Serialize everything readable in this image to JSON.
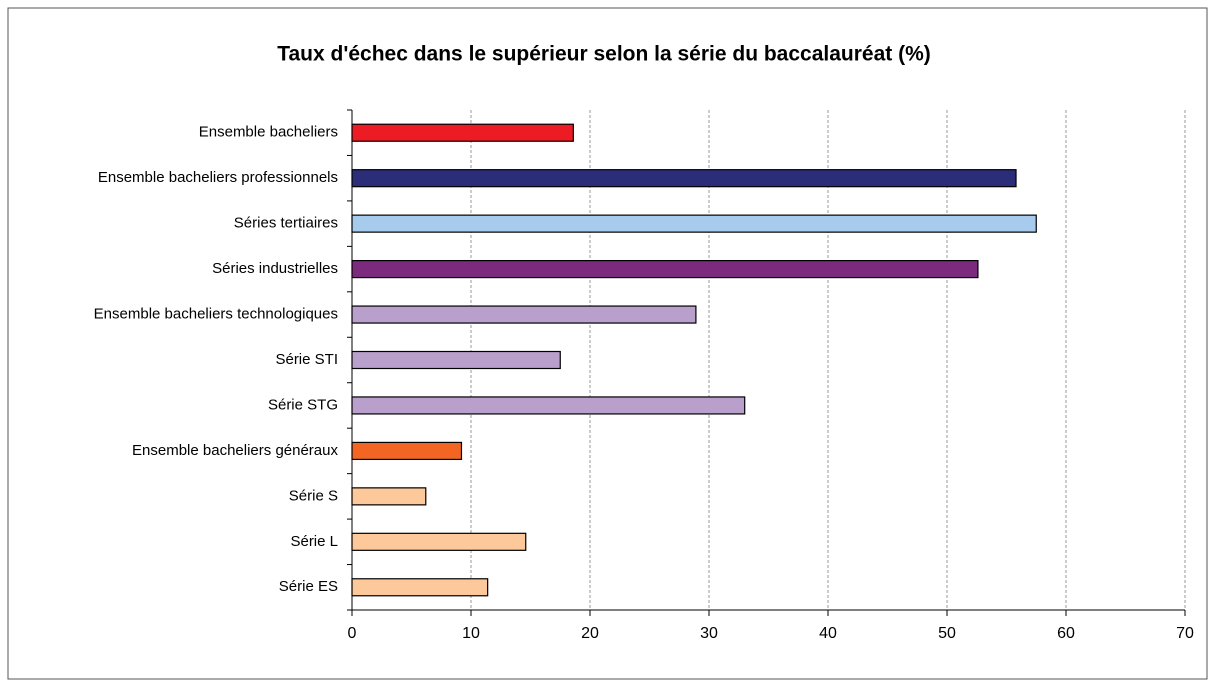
{
  "chart_data": {
    "type": "barh",
    "title": "Taux d'échec dans le supérieur selon la série du baccalauréat (%)",
    "categories": [
      "Ensemble bacheliers",
      "Ensemble bacheliers professionnels",
      "Séries tertiaires",
      "Séries industrielles",
      "Ensemble bacheliers technologiques",
      "Série STI",
      "Série STG",
      "Ensemble bacheliers généraux",
      "Série S",
      "Série L",
      "Série ES"
    ],
    "values": [
      18.6,
      55.8,
      57.5,
      52.6,
      28.9,
      17.5,
      33.0,
      9.2,
      6.2,
      14.6,
      11.4
    ],
    "colors": [
      "#ed1c24",
      "#2b2d78",
      "#a6cbec",
      "#7b2a7d",
      "#b9a0cc",
      "#b9a0cc",
      "#b9a0cc",
      "#f26522",
      "#fdc99a",
      "#fdc99a",
      "#fdc99a"
    ],
    "xlim": [
      0,
      70
    ],
    "xticks": [
      0,
      10,
      20,
      30,
      40,
      50,
      60,
      70
    ],
    "grid": true
  }
}
